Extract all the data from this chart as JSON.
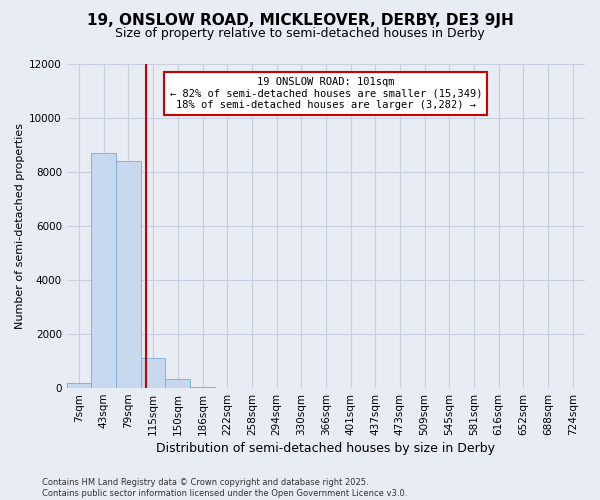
{
  "title1": "19, ONSLOW ROAD, MICKLEOVER, DERBY, DE3 9JH",
  "title2": "Size of property relative to semi-detached houses in Derby",
  "xlabel": "Distribution of semi-detached houses by size in Derby",
  "ylabel": "Number of semi-detached properties",
  "categories": [
    "7sqm",
    "43sqm",
    "79sqm",
    "115sqm",
    "150sqm",
    "186sqm",
    "222sqm",
    "258sqm",
    "294sqm",
    "330sqm",
    "366sqm",
    "401sqm",
    "437sqm",
    "473sqm",
    "509sqm",
    "545sqm",
    "581sqm",
    "616sqm",
    "652sqm",
    "688sqm",
    "724sqm"
  ],
  "values": [
    200,
    8700,
    8400,
    1100,
    350,
    50,
    0,
    0,
    0,
    0,
    0,
    0,
    0,
    0,
    0,
    0,
    0,
    0,
    0,
    0,
    0
  ],
  "bar_color": "#c8d8ee",
  "bar_edge_color": "#7aaad4",
  "vline_color": "#cc0000",
  "vline_pos": 2.72,
  "annotation_box_text": "19 ONSLOW ROAD: 101sqm\n← 82% of semi-detached houses are smaller (15,349)\n18% of semi-detached houses are larger (3,282) →",
  "annotation_box_edge_color": "#cc0000",
  "ylim": [
    0,
    12000
  ],
  "yticks": [
    0,
    2000,
    4000,
    6000,
    8000,
    10000,
    12000
  ],
  "footer": "Contains HM Land Registry data © Crown copyright and database right 2025.\nContains public sector information licensed under the Open Government Licence v3.0.",
  "bg_color": "#e8ecf4",
  "plot_bg_color": "#e8ecf4",
  "grid_color": "#c8d0e0",
  "title1_fontsize": 11,
  "title2_fontsize": 9,
  "xlabel_fontsize": 9,
  "ylabel_fontsize": 8,
  "tick_fontsize": 7.5,
  "annot_fontsize": 7.5,
  "footer_fontsize": 6
}
